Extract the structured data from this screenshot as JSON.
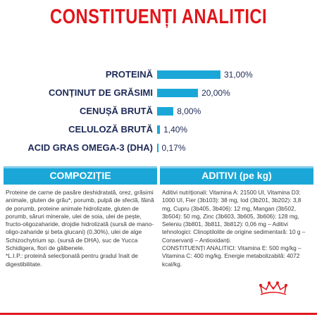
{
  "page": {
    "title": "CONSTITUENȚI ANALITICI"
  },
  "analytics": [
    {
      "label": "PROTEINĂ",
      "value_text": "31,00%",
      "value": 31.0
    },
    {
      "label": "CONȚINUT DE GRĂSIMI",
      "value_text": "20,00%",
      "value": 20.0
    },
    {
      "label": "CENUȘĂ BRUTĂ",
      "value_text": "8,00%",
      "value": 8.0
    },
    {
      "label": "CELULOZĂ BRUTĂ",
      "value_text": "1,40%",
      "value": 1.4
    },
    {
      "label": "ACID GRAS OMEGA-3 (DHA)",
      "value_text": "0,17%",
      "value": 0.17
    }
  ],
  "composition": {
    "heading": "COMPOZIȚIE",
    "text": "Proteine de carne de pasăre deshidratată, orez, grăsimi animale, gluten de grâu*, porumb, pulpă de sfeclă, făină de porumb, proteine animale hidrolizate, gluten de porumb, săruri minerale, ulei de soia, ulei de pește, fructo-oligozaharide, drojdie hidrolizată (sursă de mano-oligo-zaharide și beta glucani) (0,30%), ulei de alge Schizochytrium sp. (sursă de DHA), suc de Yucca Schidigera, flori de gălbenele.\n*L.I.P.: proteină selecționată pentru gradul înalt de digestibilitate."
  },
  "additives": {
    "heading": "ADITIVI (pe kg)",
    "text": "Aditivi nutriționali: Vitamina A: 21500 UI, Vitamina D3: 1000 UI, Fier (3b103): 38 mg, Iod (3b201, 3b202): 3,8 mg, Cupru (3b405, 3b406): 12 mg, Mangan (3b502, 3b504): 50 mg, Zinc (3b603, 3b605, 3b606): 128 mg, Seleniu (3b801, 3b811, 3b812): 0,06 mg – Aditivi tehnologici: Clinoptilolite de origine sedimentară: 10 g – Conservanți – Antioxidanți.\nCONSTITUENȚI ANALITICI: Vitamina E: 500 mg/kg – Vitamina C: 400 mg/kg. Energie metabolizabilă: 4072 kcal/kg."
  },
  "colors": {
    "title_red": "#e1161b",
    "bar_blue": "#1aa7d8",
    "label_navy": "#1d2a57",
    "logo_red": "#e1161b"
  },
  "icons": [
    "crown-logo"
  ]
}
